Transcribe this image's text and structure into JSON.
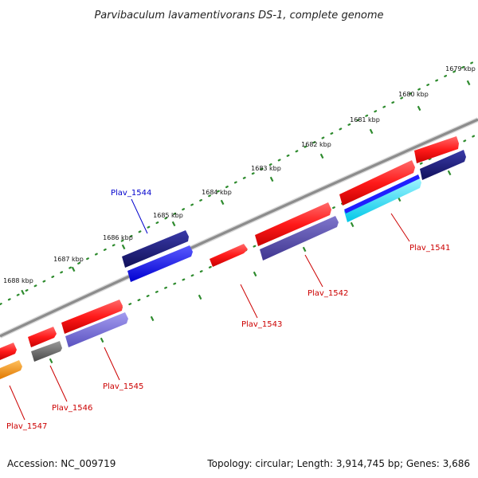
{
  "title": "Parvibaculum lavamentivorans DS-1, complete genome",
  "footer": {
    "accession": "Accession: NC_009719",
    "summary": "Topology: circular; Length: 3,914,745 bp; Genes: 3,686"
  },
  "ruler": {
    "labels": [
      "1679 kbp",
      "1680 kbp",
      "1681 kbp",
      "1682 kbp",
      "1683 kbp",
      "1684 kbp",
      "1685 kbp",
      "1686 kbp",
      "1687 kbp",
      "1688 kbp"
    ]
  },
  "genes": [
    {
      "name": "Plav_1541",
      "color": "#cc0000"
    },
    {
      "name": "Plav_1542",
      "color": "#cc0000"
    },
    {
      "name": "Plav_1543",
      "color": "#cc0000"
    },
    {
      "name": "Plav_1544",
      "color": "#0000cc"
    },
    {
      "name": "Plav_1545",
      "color": "#cc0000"
    },
    {
      "name": "Plav_1546",
      "color": "#cc0000"
    },
    {
      "name": "Plav_1547",
      "color": "#cc0000"
    }
  ],
  "colors": {
    "backbone": "#8c8c8c",
    "ruler_ticks": "#2e8b2e",
    "red": "#ff1a1a",
    "navy": "#1a1a80",
    "blue": "#1f1fff",
    "slate": "#5a50b0",
    "light_slate": "#7f78d8",
    "gray": "#6e6e6e",
    "cyan": "#33e6ff",
    "orange": "#ff9900"
  }
}
